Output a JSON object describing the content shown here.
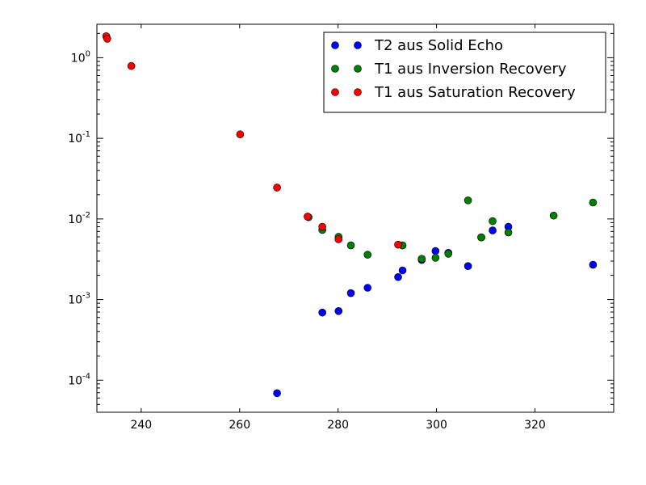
{
  "chart_data": {
    "type": "scatter",
    "title": "",
    "xlabel": "",
    "ylabel": "",
    "xlim": [
      231,
      336
    ],
    "ylim": [
      4e-05,
      2.6
    ],
    "yscale": "log",
    "grid": false,
    "legend_position": "top-right",
    "x_ticks": [
      240,
      260,
      280,
      300,
      320
    ],
    "x_tick_labels": [
      "240",
      "260",
      "280",
      "300",
      "320"
    ],
    "y_ticks": [
      1,
      0.1,
      0.01,
      0.001,
      0.0001
    ],
    "y_tick_labels": [
      {
        "base": "10",
        "exp": "0"
      },
      {
        "base": "10",
        "exp": "-1"
      },
      {
        "base": "10",
        "exp": "-2"
      },
      {
        "base": "10",
        "exp": "-3"
      },
      {
        "base": "10",
        "exp": "-4"
      }
    ],
    "series": [
      {
        "name": "T2 aus Solid Echo",
        "color": "#0000ff",
        "points": [
          [
            267.6,
            6.9e-05
          ],
          [
            276.8,
            0.00069
          ],
          [
            280.1,
            0.00072
          ],
          [
            282.6,
            0.0012
          ],
          [
            286.0,
            0.0014
          ],
          [
            292.2,
            0.0019
          ],
          [
            293.1,
            0.0023
          ],
          [
            297.0,
            0.0031
          ],
          [
            299.8,
            0.004
          ],
          [
            302.4,
            0.0038
          ],
          [
            306.4,
            0.0026
          ],
          [
            309.1,
            0.0059
          ],
          [
            311.4,
            0.0072
          ],
          [
            314.6,
            0.008
          ],
          [
            331.8,
            0.0027
          ]
        ]
      },
      {
        "name": "T1 aus Inversion Recovery",
        "color": "#008000",
        "points": [
          [
            274.0,
            0.0105
          ],
          [
            276.8,
            0.0073
          ],
          [
            280.1,
            0.006
          ],
          [
            282.6,
            0.0047
          ],
          [
            286.0,
            0.0036
          ],
          [
            293.1,
            0.0047
          ],
          [
            297.0,
            0.0032
          ],
          [
            299.8,
            0.0033
          ],
          [
            302.4,
            0.0037
          ],
          [
            306.4,
            0.017
          ],
          [
            309.1,
            0.0059
          ],
          [
            311.4,
            0.0094
          ],
          [
            314.6,
            0.0068
          ],
          [
            323.8,
            0.011
          ],
          [
            331.8,
            0.016
          ]
        ]
      },
      {
        "name": "T1 aus Saturation Recovery",
        "color": "#ff0000",
        "points": [
          [
            232.9,
            1.85
          ],
          [
            233.1,
            1.72
          ],
          [
            238.0,
            0.79
          ],
          [
            260.1,
            0.112
          ],
          [
            267.6,
            0.0245
          ],
          [
            273.8,
            0.0107
          ],
          [
            276.8,
            0.008
          ],
          [
            280.1,
            0.0056
          ],
          [
            292.2,
            0.0048
          ]
        ]
      }
    ]
  }
}
